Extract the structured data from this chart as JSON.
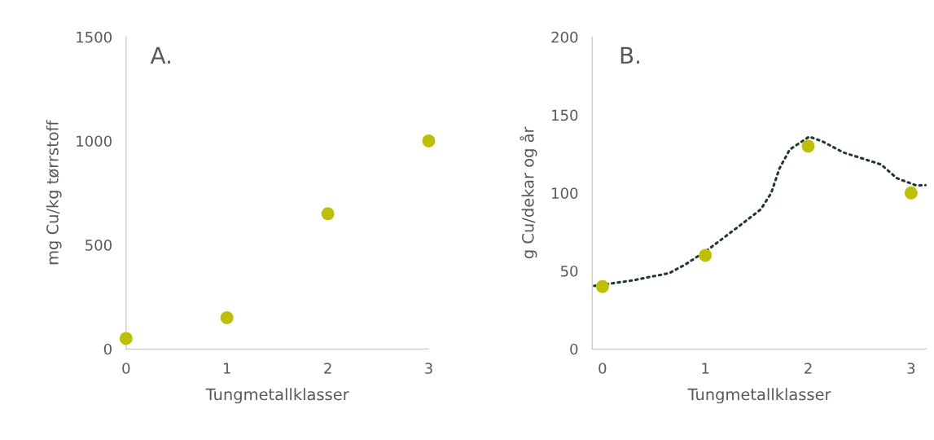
{
  "chart_data": [
    {
      "type": "scatter",
      "annotations": [
        "A."
      ],
      "xlabel": "Tungmetallklasser",
      "ylabel": "mg Cu/kg tørrstoff",
      "x": [
        0,
        1,
        2,
        3
      ],
      "xlim": [
        0,
        3
      ],
      "xticks": [
        0,
        1,
        2,
        3
      ],
      "ylim": [
        0,
        1500
      ],
      "yticks": [
        0,
        500,
        1000,
        1500
      ],
      "grid": false,
      "legend": false,
      "marker": "circle",
      "series": [
        {
          "color": "#bcc000",
          "values": [
            50,
            150,
            650,
            1000
          ]
        }
      ]
    },
    {
      "type": "scatter",
      "annotations": [
        "B."
      ],
      "xlabel": "Tungmetallklasser",
      "ylabel": "g Cu/dekar og år",
      "x": [
        0,
        1,
        2,
        3
      ],
      "xlim": [
        -0.1,
        3.15
      ],
      "xticks": [
        0,
        1,
        2,
        3
      ],
      "ylim": [
        0,
        200
      ],
      "yticks": [
        0,
        50,
        100,
        150,
        200
      ],
      "grid": false,
      "legend": false,
      "marker": "circle",
      "series": [
        {
          "color": "#bcc000",
          "values": [
            40,
            60,
            130,
            100
          ]
        },
        {
          "type": "line",
          "line_style": "dotted",
          "marker": "none",
          "color": "#1f3a35",
          "x": [
            -0.08,
            0.29,
            0.65,
            0.81,
            1.02,
            1.3,
            1.54,
            1.64,
            1.72,
            1.82,
            2.01,
            2.14,
            2.34,
            2.71,
            2.86,
            3.05,
            3.14
          ],
          "values": [
            40.4,
            43.9,
            48.6,
            54.3,
            63.4,
            77.3,
            89.5,
            99.9,
            115.6,
            127.8,
            136.1,
            133,
            126,
            118.2,
            109.5,
            104.8,
            105
          ]
        }
      ]
    }
  ]
}
